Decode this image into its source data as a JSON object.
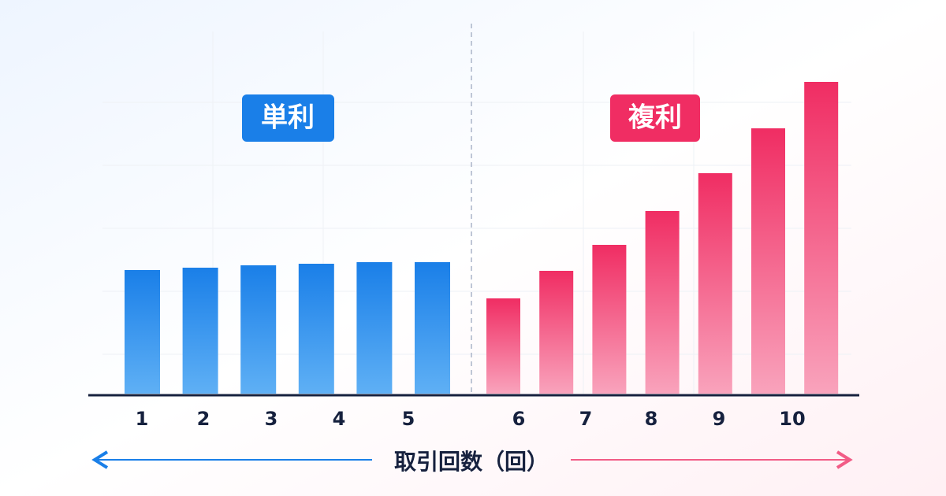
{
  "chart_data": {
    "type": "bar",
    "series": [
      {
        "name": "単利",
        "color": "#1a7fe8",
        "values": [
          157,
          160,
          163,
          165,
          167,
          167
        ]
      },
      {
        "name": "複利",
        "color": "#f02d63",
        "values": [
          121,
          156,
          189,
          232,
          280,
          337,
          396
        ]
      }
    ],
    "xticks": [
      1,
      2,
      3,
      4,
      5,
      6,
      7,
      8,
      9,
      10
    ],
    "x_label": "取引回数（回）",
    "ylim": [
      0,
      400
    ],
    "grid": true
  }
}
